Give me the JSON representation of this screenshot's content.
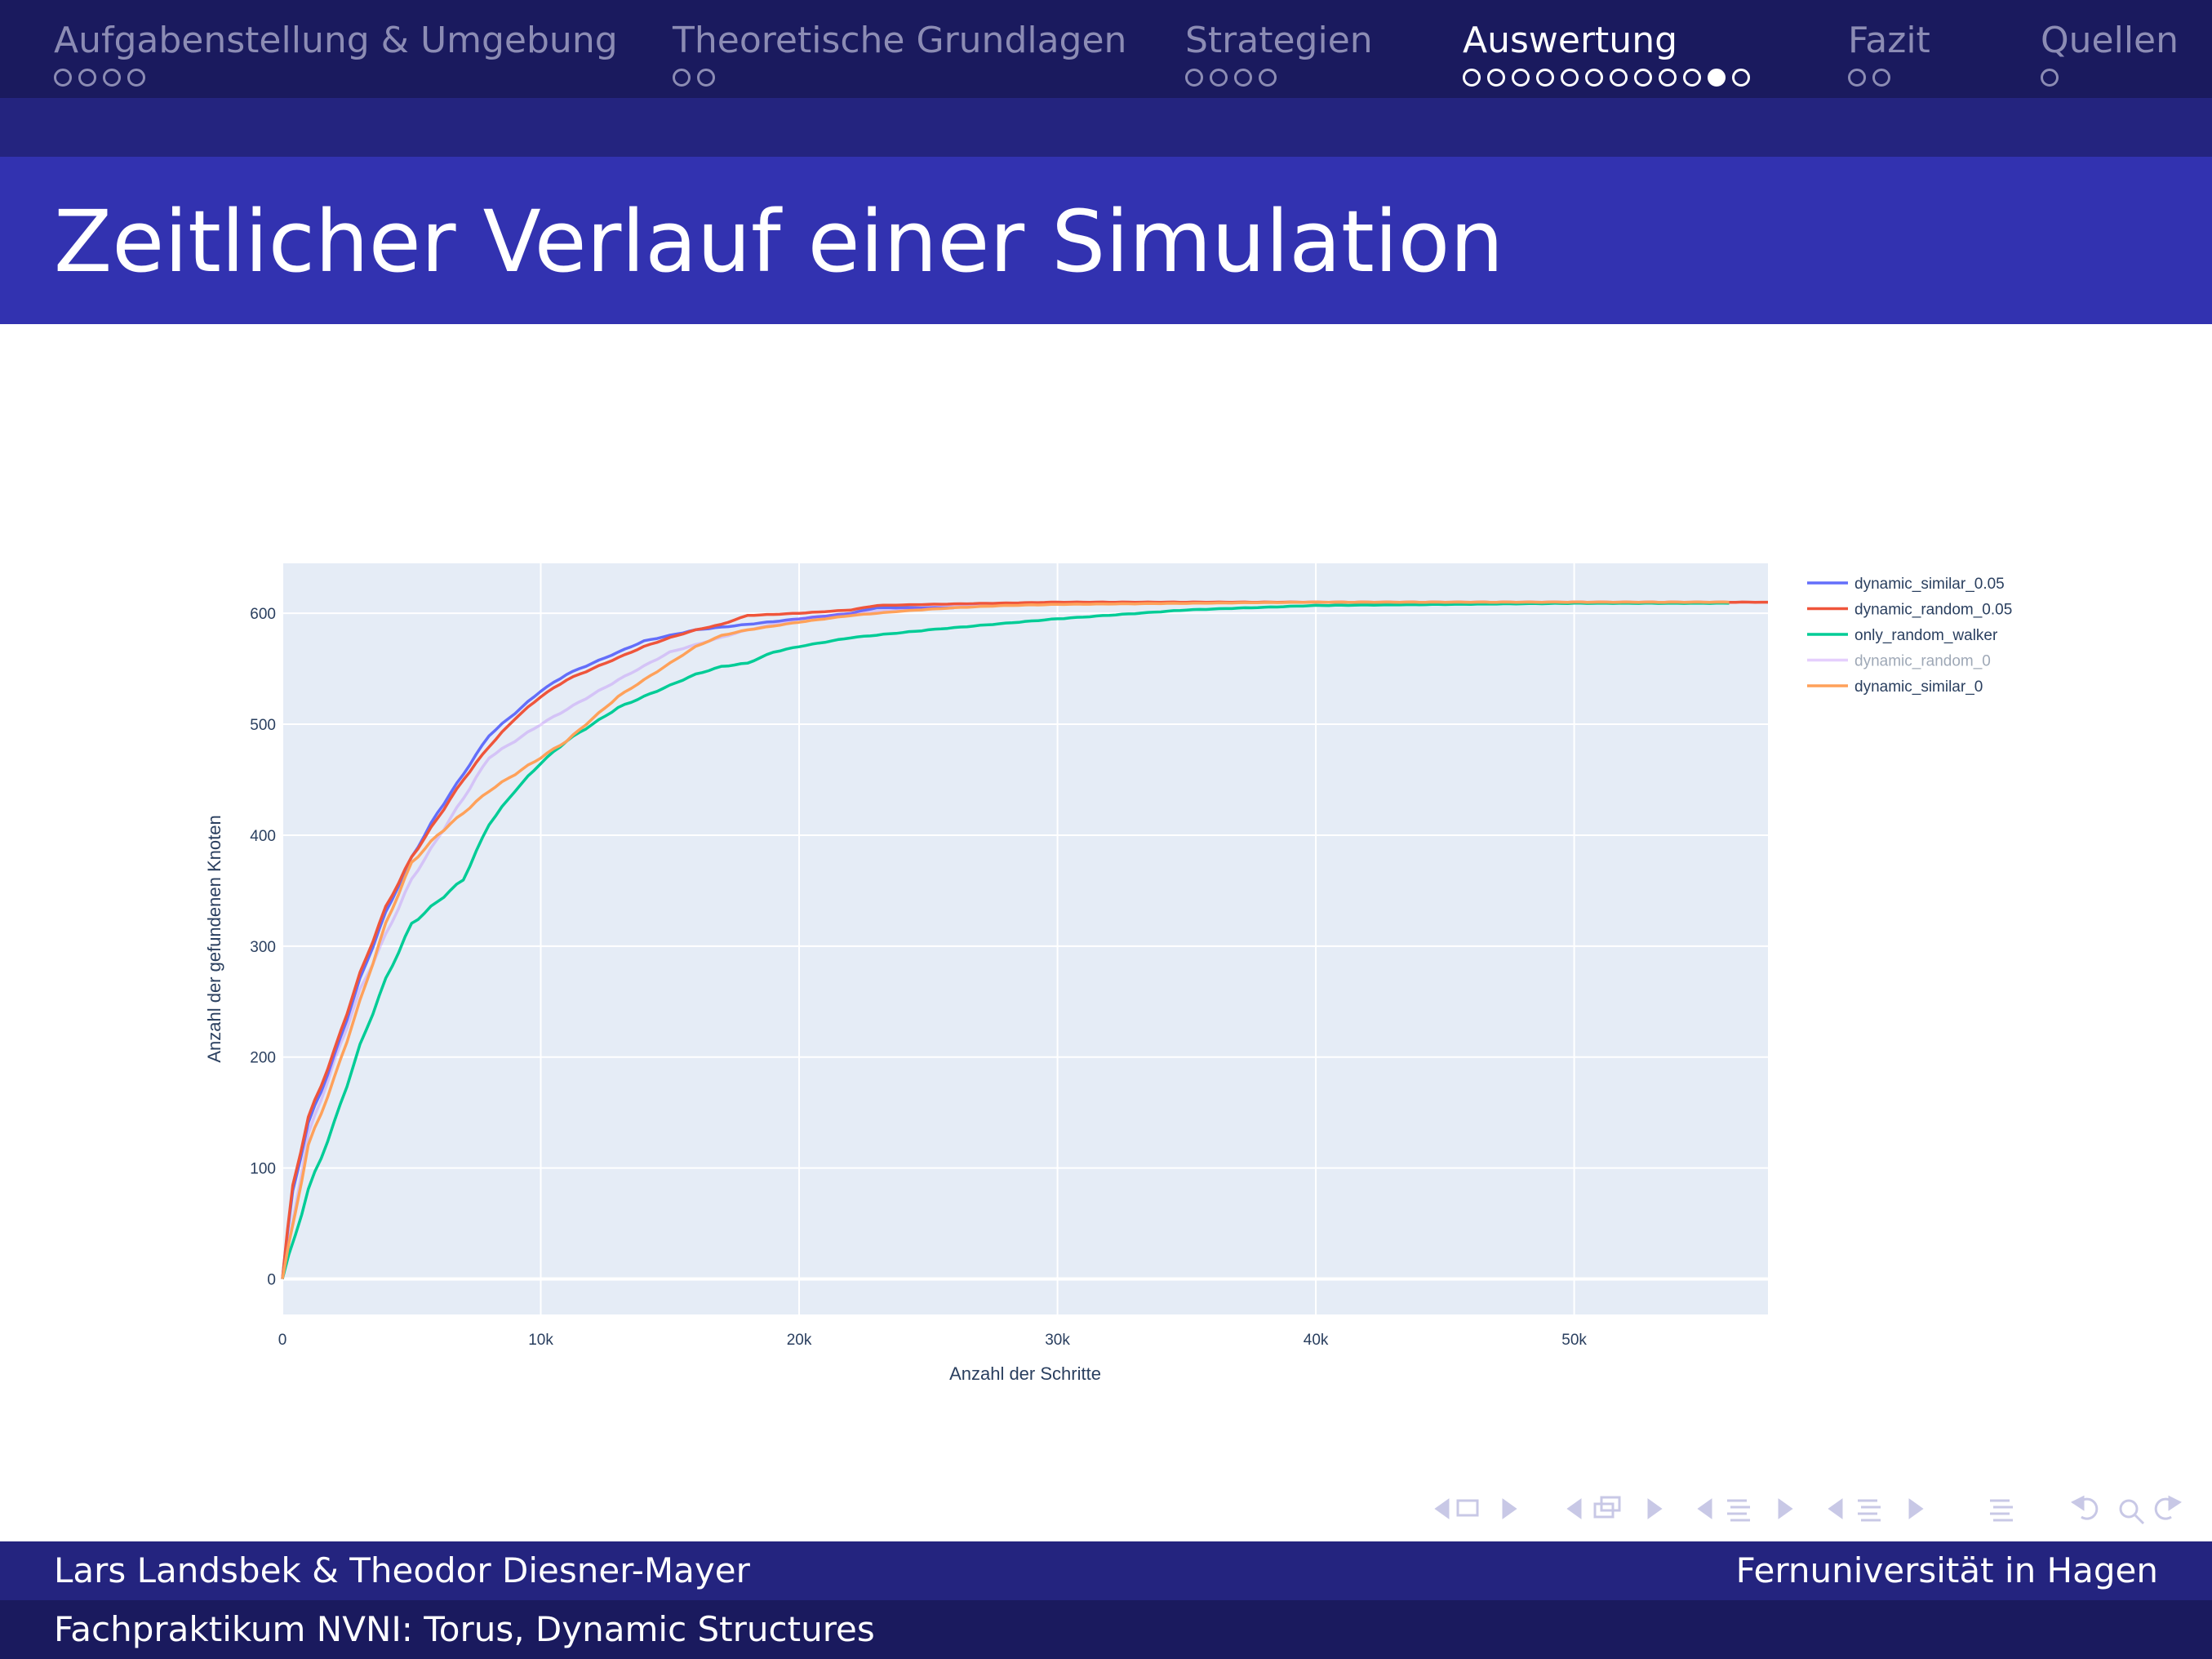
{
  "nav": {
    "sections": [
      {
        "label": "Aufgabenstellung & Umgebung",
        "dots": 4,
        "filled": -1,
        "active": false
      },
      {
        "label": "Theoretische Grundlagen",
        "dots": 2,
        "filled": -1,
        "active": false
      },
      {
        "label": "Strategien",
        "dots": 4,
        "filled": -1,
        "active": false
      },
      {
        "label": "Auswertung",
        "dots": 12,
        "filled": 10,
        "active": true
      },
      {
        "label": "Fazit",
        "dots": 2,
        "filled": -1,
        "active": false
      },
      {
        "label": "Quellen",
        "dots": 1,
        "filled": -1,
        "active": false
      }
    ]
  },
  "slide": {
    "title": "Zeitlicher Verlauf einer Simulation"
  },
  "footer": {
    "authors": "Lars Landsbek & Theodor Diesner-Mayer",
    "institution": "Fernuniversität in Hagen",
    "course": "Fachpraktikum NVNI: Torus, Dynamic Structures"
  },
  "colors": {
    "nav_bg": "#1a1a5e",
    "subbar": "#24247f",
    "title_bg": "#3232b0",
    "plot_bg": "#e5ecf6"
  },
  "chart_data": {
    "type": "line",
    "xlabel": "Anzahl der Schritte",
    "ylabel": "Anzahl der gefundenen Knoten",
    "xlim": [
      0,
      57500
    ],
    "ylim": [
      -32,
      645
    ],
    "xticks": [
      0,
      10000,
      20000,
      30000,
      40000,
      50000
    ],
    "xtick_labels": [
      "0",
      "10k",
      "20k",
      "30k",
      "40k",
      "50k"
    ],
    "yticks": [
      0,
      100,
      200,
      300,
      400,
      500,
      600
    ],
    "ytick_labels": [
      "0",
      "100",
      "200",
      "300",
      "400",
      "500",
      "600"
    ],
    "grid": true,
    "legend_position": "right",
    "series": [
      {
        "name": "dynamic_similar_0.05",
        "color": "#636efa",
        "opacity": 1,
        "x": [
          0,
          400,
          1000,
          2000,
          3000,
          4000,
          5000,
          6000,
          7000,
          8000,
          9000,
          10000,
          11000,
          12000,
          13000,
          14000,
          15000,
          16000,
          18000,
          20000,
          22000,
          23000,
          25000,
          26000
        ],
        "y": [
          0,
          80,
          140,
          200,
          270,
          330,
          380,
          420,
          455,
          490,
          510,
          530,
          545,
          555,
          565,
          575,
          580,
          585,
          590,
          595,
          600,
          605,
          605,
          605
        ]
      },
      {
        "name": "dynamic_random_0.05",
        "color": "#ef553b",
        "opacity": 1,
        "x": [
          0,
          400,
          1000,
          2000,
          3000,
          4000,
          5000,
          6000,
          7000,
          8000,
          9000,
          10000,
          11000,
          12000,
          13000,
          14000,
          15000,
          16000,
          17000,
          18000,
          20000,
          22000,
          23000,
          25000,
          30000,
          40000,
          50000,
          57500
        ],
        "y": [
          0,
          85,
          145,
          205,
          275,
          335,
          380,
          415,
          450,
          480,
          505,
          525,
          540,
          550,
          560,
          570,
          578,
          585,
          590,
          598,
          600,
          603,
          607,
          608,
          610,
          610,
          610,
          610
        ]
      },
      {
        "name": "only_random_walker",
        "color": "#00cc96",
        "opacity": 1,
        "x": [
          0,
          500,
          1000,
          2000,
          3000,
          4000,
          5000,
          6000,
          7000,
          8000,
          9000,
          10000,
          11000,
          12000,
          13000,
          14000,
          15000,
          16000,
          17000,
          18000,
          19000,
          20000,
          22000,
          25000,
          30000,
          35000,
          40000,
          45000,
          50000,
          56000
        ],
        "y": [
          0,
          40,
          80,
          140,
          210,
          270,
          320,
          340,
          360,
          410,
          440,
          465,
          485,
          500,
          515,
          525,
          535,
          545,
          552,
          555,
          565,
          570,
          578,
          585,
          595,
          603,
          607,
          608,
          609,
          609
        ]
      },
      {
        "name": "dynamic_random_0",
        "color": "#ab63fa",
        "opacity": 0.3,
        "x": [
          0,
          1000,
          3000,
          5000,
          8000,
          10000,
          13000,
          15000,
          18000,
          20000,
          23000,
          25000,
          27000
        ],
        "y": [
          0,
          130,
          260,
          360,
          470,
          500,
          540,
          565,
          585,
          595,
          602,
          605,
          607
        ]
      },
      {
        "name": "dynamic_similar_0",
        "color": "#ffa15a",
        "opacity": 1,
        "x": [
          0,
          500,
          1000,
          2000,
          3000,
          4000,
          5000,
          6000,
          7000,
          8000,
          9000,
          10000,
          11000,
          12000,
          13000,
          14000,
          15000,
          16000,
          17000,
          18000,
          20000,
          22000,
          24000,
          26000,
          28000,
          30000,
          35000,
          40000,
          45000,
          50000,
          55000,
          56000
        ],
        "y": [
          0,
          60,
          120,
          180,
          250,
          320,
          375,
          400,
          420,
          440,
          455,
          470,
          485,
          505,
          525,
          540,
          555,
          570,
          580,
          585,
          592,
          598,
          602,
          605,
          607,
          608,
          609,
          610,
          610,
          610,
          610,
          610
        ]
      }
    ]
  },
  "nav_symbols_label": "navigation-symbols"
}
